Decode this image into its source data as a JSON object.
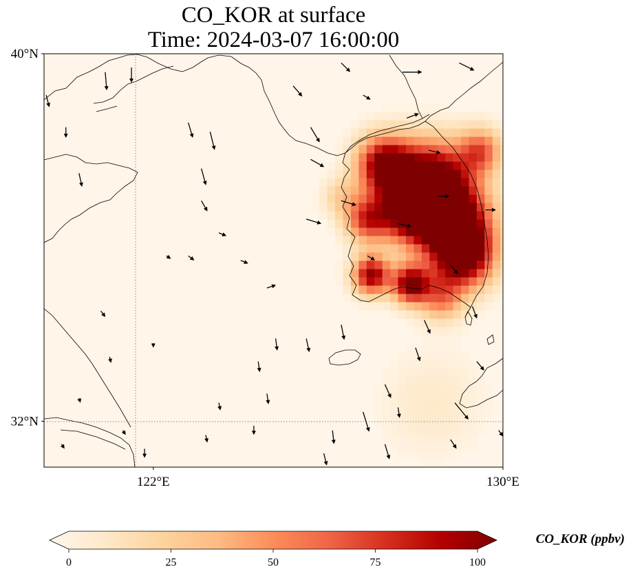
{
  "title": {
    "line1": "CO_KOR at surface",
    "line2": "Time: 2024-03-07 16:00:00"
  },
  "map": {
    "lon_range": [
      119.5,
      130
    ],
    "lat_range": [
      31,
      40
    ],
    "lat_ticks": [
      {
        "value": 40,
        "label": "40°N"
      },
      {
        "value": 32,
        "label": "32°N"
      }
    ],
    "lon_ticks": [
      {
        "value": 122,
        "label": "122°E"
      },
      {
        "value": 130,
        "label": "130°E"
      }
    ],
    "gridlines": [
      {
        "axis": "lon",
        "value": 122
      },
      {
        "axis": "lat",
        "value": 32
      }
    ],
    "gridline_style": "dotted"
  },
  "colorbar": {
    "label": "CO_KOR (ppbv)",
    "min": 0,
    "max": 100,
    "ticks": [
      {
        "value": 0,
        "label": "0"
      },
      {
        "value": 25,
        "label": "25"
      },
      {
        "value": 50,
        "label": "50"
      },
      {
        "value": 75,
        "label": "75"
      },
      {
        "value": 100,
        "label": "100"
      }
    ],
    "extend": "both",
    "colormap": [
      "#fff7ec",
      "#fee8c8",
      "#fdd49e",
      "#fdbb84",
      "#fc8d59",
      "#ef6548",
      "#d7301f",
      "#b30000",
      "#7f0000"
    ]
  },
  "plume_hotspots": [
    {
      "lon": 127.2,
      "lat": 37.5,
      "value": 100,
      "spread": 0.45
    },
    {
      "lon": 128.3,
      "lat": 37.2,
      "value": 100,
      "spread": 0.6
    },
    {
      "lon": 128.8,
      "lat": 36.3,
      "value": 100,
      "spread": 0.6
    },
    {
      "lon": 127.8,
      "lat": 36.5,
      "value": 100,
      "spread": 0.5
    },
    {
      "lon": 129.0,
      "lat": 35.5,
      "value": 100,
      "spread": 0.5
    },
    {
      "lon": 126.9,
      "lat": 35.1,
      "value": 95,
      "spread": 0.3
    },
    {
      "lon": 127.8,
      "lat": 34.9,
      "value": 100,
      "spread": 0.3
    },
    {
      "lon": 126.8,
      "lat": 36.3,
      "value": 70,
      "spread": 0.35
    },
    {
      "lon": 129.4,
      "lat": 37.8,
      "value": 60,
      "spread": 0.35
    },
    {
      "lon": 128.5,
      "lat": 34.6,
      "value": 50,
      "spread": 0.35
    },
    {
      "lon": 126.2,
      "lat": 36.8,
      "value": 25,
      "spread": 0.3
    },
    {
      "lon": 128.3,
      "lat": 32.3,
      "value": 12,
      "spread": 0.8
    }
  ],
  "wind_vectors": [
    {
      "lon": 119.55,
      "lat": 39.1,
      "u": 0.2,
      "v": -0.8
    },
    {
      "lon": 120.0,
      "lat": 38.4,
      "u": 0.0,
      "v": -0.7
    },
    {
      "lon": 120.3,
      "lat": 37.4,
      "u": 0.2,
      "v": -0.9
    },
    {
      "lon": 120.9,
      "lat": 39.6,
      "u": 0.1,
      "v": -1.2
    },
    {
      "lon": 121.5,
      "lat": 39.7,
      "u": 0.0,
      "v": -1.0
    },
    {
      "lon": 122.8,
      "lat": 38.5,
      "u": 0.3,
      "v": -1.0
    },
    {
      "lon": 123.3,
      "lat": 38.3,
      "u": 0.3,
      "v": -1.2
    },
    {
      "lon": 123.1,
      "lat": 37.5,
      "u": 0.3,
      "v": -1.1
    },
    {
      "lon": 123.1,
      "lat": 36.8,
      "u": 0.4,
      "v": -0.7
    },
    {
      "lon": 123.5,
      "lat": 36.1,
      "u": 0.5,
      "v": -0.2
    },
    {
      "lon": 122.3,
      "lat": 35.6,
      "u": 0.3,
      "v": -0.2
    },
    {
      "lon": 122.8,
      "lat": 35.6,
      "u": 0.4,
      "v": -0.3
    },
    {
      "lon": 124.0,
      "lat": 35.5,
      "u": 0.5,
      "v": -0.2
    },
    {
      "lon": 124.6,
      "lat": 34.9,
      "u": 0.6,
      "v": 0.2
    },
    {
      "lon": 125.5,
      "lat": 36.4,
      "u": 1.0,
      "v": -0.3
    },
    {
      "lon": 126.3,
      "lat": 36.8,
      "u": 1.0,
      "v": -0.3
    },
    {
      "lon": 125.6,
      "lat": 37.7,
      "u": 0.9,
      "v": -0.5
    },
    {
      "lon": 125.6,
      "lat": 38.4,
      "u": 0.6,
      "v": -1.0
    },
    {
      "lon": 125.2,
      "lat": 39.3,
      "u": 0.6,
      "v": -0.7
    },
    {
      "lon": 126.3,
      "lat": 39.8,
      "u": 0.6,
      "v": -0.6
    },
    {
      "lon": 126.8,
      "lat": 39.1,
      "u": 0.5,
      "v": -0.3
    },
    {
      "lon": 127.7,
      "lat": 39.6,
      "u": 1.3,
      "v": 0.0
    },
    {
      "lon": 129.0,
      "lat": 39.8,
      "u": 1.0,
      "v": -0.5
    },
    {
      "lon": 127.8,
      "lat": 38.6,
      "u": 0.8,
      "v": 0.3
    },
    {
      "lon": 128.3,
      "lat": 37.9,
      "u": 0.8,
      "v": -0.2
    },
    {
      "lon": 128.5,
      "lat": 36.9,
      "u": 0.8,
      "v": 0.0
    },
    {
      "lon": 129.6,
      "lat": 36.6,
      "u": 0.7,
      "v": 0.0
    },
    {
      "lon": 127.6,
      "lat": 36.3,
      "u": 0.9,
      "v": -0.2
    },
    {
      "lon": 126.9,
      "lat": 35.6,
      "u": 0.5,
      "v": -0.3
    },
    {
      "lon": 128.8,
      "lat": 35.4,
      "u": 0.5,
      "v": -0.6
    },
    {
      "lon": 129.3,
      "lat": 34.5,
      "u": 0.3,
      "v": -0.8
    },
    {
      "lon": 128.2,
      "lat": 34.2,
      "u": 0.4,
      "v": -0.9
    },
    {
      "lon": 126.3,
      "lat": 34.1,
      "u": 0.2,
      "v": -1.0
    },
    {
      "lon": 125.5,
      "lat": 33.8,
      "u": 0.2,
      "v": -0.9
    },
    {
      "lon": 124.8,
      "lat": 33.8,
      "u": 0.1,
      "v": -0.8
    },
    {
      "lon": 124.4,
      "lat": 33.3,
      "u": 0.1,
      "v": -0.7
    },
    {
      "lon": 127.3,
      "lat": 32.8,
      "u": 0.4,
      "v": -0.9
    },
    {
      "lon": 126.8,
      "lat": 32.2,
      "u": 0.4,
      "v": -1.3
    },
    {
      "lon": 128.9,
      "lat": 32.4,
      "u": 0.9,
      "v": -1.1
    },
    {
      "lon": 128.8,
      "lat": 31.6,
      "u": 0.4,
      "v": -0.6
    },
    {
      "lon": 127.6,
      "lat": 32.3,
      "u": 0.1,
      "v": -0.7
    },
    {
      "lon": 127.3,
      "lat": 31.5,
      "u": 0.3,
      "v": -1.0
    },
    {
      "lon": 126.1,
      "lat": 31.8,
      "u": 0.1,
      "v": -0.9
    },
    {
      "lon": 125.9,
      "lat": 31.3,
      "u": 0.2,
      "v": -0.8
    },
    {
      "lon": 124.6,
      "lat": 32.6,
      "u": 0.1,
      "v": -0.7
    },
    {
      "lon": 123.5,
      "lat": 32.4,
      "u": 0.1,
      "v": -0.5
    },
    {
      "lon": 122.0,
      "lat": 33.7,
      "u": 0.0,
      "v": -0.3
    },
    {
      "lon": 121.0,
      "lat": 33.4,
      "u": 0.1,
      "v": -0.4
    },
    {
      "lon": 120.8,
      "lat": 34.4,
      "u": 0.3,
      "v": -0.4
    },
    {
      "lon": 120.3,
      "lat": 32.5,
      "u": 0.1,
      "v": -0.3
    },
    {
      "lon": 119.9,
      "lat": 31.5,
      "u": 0.2,
      "v": -0.3
    },
    {
      "lon": 121.3,
      "lat": 31.8,
      "u": 0.2,
      "v": -0.3
    },
    {
      "lon": 121.8,
      "lat": 31.4,
      "u": 0.0,
      "v": -0.6
    },
    {
      "lon": 123.2,
      "lat": 31.7,
      "u": 0.1,
      "v": -0.5
    },
    {
      "lon": 124.3,
      "lat": 31.9,
      "u": 0.0,
      "v": -0.6
    },
    {
      "lon": 129.9,
      "lat": 31.8,
      "u": 0.3,
      "v": -0.4
    },
    {
      "lon": 129.4,
      "lat": 33.3,
      "u": 0.5,
      "v": -0.6
    },
    {
      "lon": 128.0,
      "lat": 33.6,
      "u": 0.3,
      "v": -0.9
    }
  ]
}
